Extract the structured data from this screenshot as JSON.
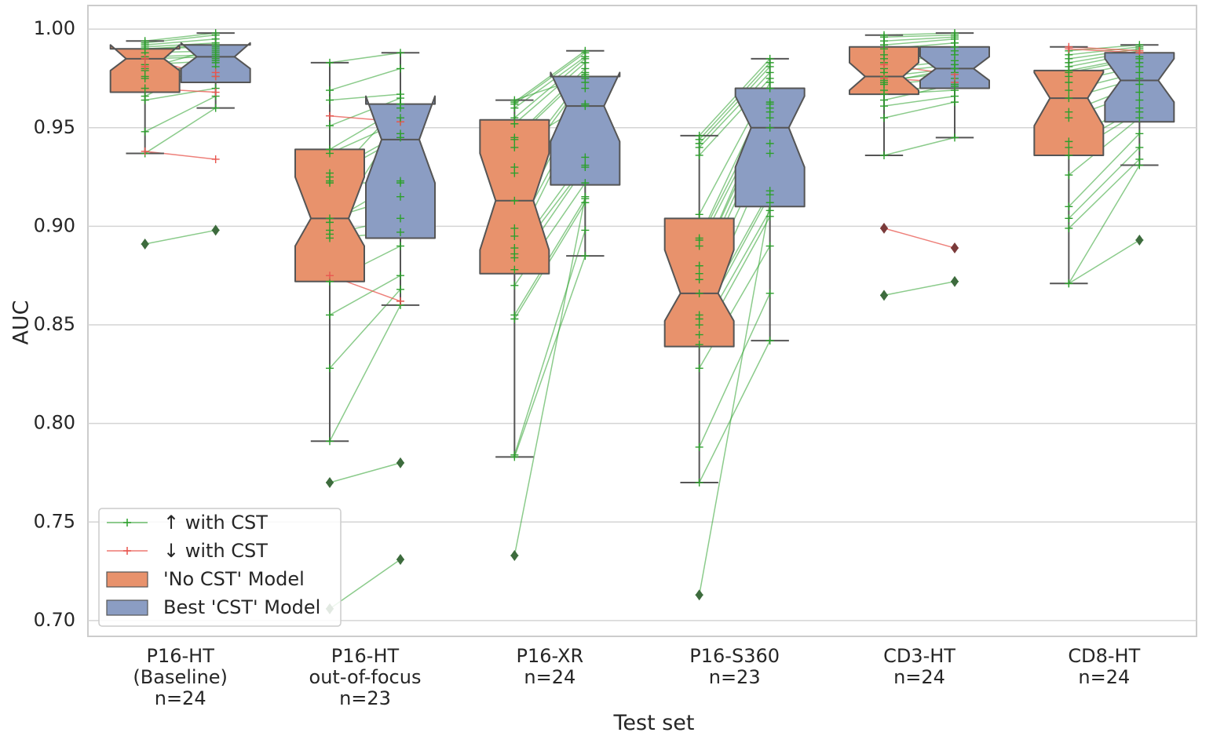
{
  "chart_data": {
    "type": "boxplot-paired",
    "title": "",
    "xlabel": "Test set",
    "ylabel": "AUC",
    "ylim": [
      0.692,
      1.012
    ],
    "yticks": [
      0.7,
      0.75,
      0.8,
      0.85,
      0.9,
      0.95,
      1.0
    ],
    "ytick_labels": [
      "0.70",
      "0.75",
      "0.80",
      "0.85",
      "0.90",
      "0.95",
      "1.00"
    ],
    "grid": true,
    "legend_location": "lower-left",
    "legend": [
      {
        "label": "↑ with CST",
        "kind": "line",
        "color": "#2ca02c"
      },
      {
        "label": "↓ with CST",
        "kind": "line",
        "color": "#e8554e"
      },
      {
        "label": "'No CST' Model",
        "kind": "patch",
        "color": "#e8926c"
      },
      {
        "label": "Best 'CST' Model",
        "kind": "patch",
        "color": "#8b9dc3"
      }
    ],
    "colors": {
      "no_cst": "#e8926c",
      "cst": "#8b9dc3",
      "edge": "#555555",
      "up": "#2ca02c",
      "down": "#e8554e",
      "outlier_green": "#3d6b3d",
      "outlier_red": "#7a3a3a",
      "grid": "#d4d4d4"
    },
    "categories": [
      {
        "lines": [
          "P16-HT",
          "(Baseline)",
          "n=24"
        ],
        "no_cst": {
          "whislo": 0.937,
          "q1": 0.968,
          "med": 0.985,
          "q3": 0.99,
          "whishi": 0.994,
          "notch_lo": 0.979,
          "notch_hi": 0.992,
          "outliers": [
            0.891
          ]
        },
        "cst": {
          "whislo": 0.96,
          "q1": 0.973,
          "med": 0.986,
          "q3": 0.992,
          "whishi": 0.998,
          "notch_lo": 0.98,
          "notch_hi": 0.993,
          "outliers": [
            0.898
          ]
        },
        "pairs": [
          [
            0.937,
            0.96
          ],
          [
            0.948,
            0.966
          ],
          [
            0.964,
            0.97
          ],
          [
            0.97,
            0.968
          ],
          [
            0.976,
            0.976
          ],
          [
            0.979,
            0.981
          ],
          [
            0.982,
            0.984
          ],
          [
            0.985,
            0.986
          ],
          [
            0.986,
            0.987
          ],
          [
            0.988,
            0.989
          ],
          [
            0.99,
            0.991
          ],
          [
            0.991,
            0.993
          ],
          [
            0.992,
            0.995
          ],
          [
            0.993,
            0.997
          ],
          [
            0.994,
            0.998
          ],
          [
            0.98,
            0.99
          ],
          [
            0.975,
            0.985
          ],
          [
            0.97,
            0.988
          ],
          [
            0.966,
            0.983
          ],
          [
            0.938,
            0.934
          ],
          [
            0.981,
            0.978
          ],
          [
            0.985,
            0.976
          ],
          [
            0.99,
            0.992
          ],
          [
            0.891,
            0.898
          ]
        ]
      },
      {
        "lines": [
          "P16-HT",
          "out-of-focus",
          "n=23"
        ],
        "no_cst": {
          "whislo": 0.791,
          "q1": 0.872,
          "med": 0.904,
          "q3": 0.939,
          "whishi": 0.983,
          "notch_lo": 0.89,
          "notch_hi": 0.925,
          "outliers": [
            0.77,
            0.706
          ]
        },
        "cst": {
          "whislo": 0.86,
          "q1": 0.894,
          "med": 0.944,
          "q3": 0.962,
          "whishi": 0.988,
          "notch_lo": 0.922,
          "notch_hi": 0.966,
          "outliers": [
            0.78,
            0.731
          ]
        },
        "pairs": [
          [
            0.791,
            0.86
          ],
          [
            0.828,
            0.868
          ],
          [
            0.855,
            0.875
          ],
          [
            0.872,
            0.89
          ],
          [
            0.894,
            0.897
          ],
          [
            0.896,
            0.904
          ],
          [
            0.904,
            0.915
          ],
          [
            0.922,
            0.922
          ],
          [
            0.925,
            0.945
          ],
          [
            0.927,
            0.947
          ],
          [
            0.939,
            0.96
          ],
          [
            0.951,
            0.965
          ],
          [
            0.964,
            0.967
          ],
          [
            0.969,
            0.98
          ],
          [
            0.983,
            0.988
          ],
          [
            0.902,
            0.923
          ],
          [
            0.937,
            0.953
          ],
          [
            0.956,
            0.953
          ],
          [
            0.875,
            0.862
          ],
          [
            0.898,
            0.955
          ],
          [
            0.923,
            0.962
          ],
          [
            0.77,
            0.78
          ],
          [
            0.706,
            0.731
          ]
        ]
      },
      {
        "lines": [
          "P16-XR",
          "n=24"
        ],
        "no_cst": {
          "whislo": 0.783,
          "q1": 0.876,
          "med": 0.913,
          "q3": 0.954,
          "whishi": 0.964,
          "notch_lo": 0.888,
          "notch_hi": 0.937,
          "outliers": [
            0.733
          ]
        },
        "cst": {
          "whislo": 0.885,
          "q1": 0.921,
          "med": 0.961,
          "q3": 0.976,
          "whishi": 0.989,
          "notch_lo": 0.943,
          "notch_hi": 0.978,
          "outliers": []
        },
        "pairs": [
          [
            0.783,
            0.885
          ],
          [
            0.784,
            0.898
          ],
          [
            0.853,
            0.912
          ],
          [
            0.855,
            0.914
          ],
          [
            0.87,
            0.922
          ],
          [
            0.878,
            0.93
          ],
          [
            0.884,
            0.931
          ],
          [
            0.886,
            0.935
          ],
          [
            0.889,
            0.961
          ],
          [
            0.895,
            0.962
          ],
          [
            0.899,
            0.97
          ],
          [
            0.913,
            0.973
          ],
          [
            0.927,
            0.975
          ],
          [
            0.93,
            0.977
          ],
          [
            0.944,
            0.978
          ],
          [
            0.945,
            0.98
          ],
          [
            0.952,
            0.983
          ],
          [
            0.955,
            0.985
          ],
          [
            0.96,
            0.986
          ],
          [
            0.962,
            0.988
          ],
          [
            0.963,
            0.989
          ],
          [
            0.964,
            0.976
          ],
          [
            0.94,
            0.962
          ],
          [
            0.733,
            0.915
          ]
        ]
      },
      {
        "lines": [
          "P16-S360",
          "n=23"
        ],
        "no_cst": {
          "whislo": 0.77,
          "q1": 0.839,
          "med": 0.866,
          "q3": 0.904,
          "whishi": 0.946,
          "notch_lo": 0.852,
          "notch_hi": 0.888,
          "outliers": [
            0.713
          ]
        },
        "cst": {
          "whislo": 0.842,
          "q1": 0.91,
          "med": 0.95,
          "q3": 0.97,
          "whishi": 0.985,
          "notch_lo": 0.93,
          "notch_hi": 0.966,
          "outliers": []
        },
        "pairs": [
          [
            0.77,
            0.842
          ],
          [
            0.788,
            0.866
          ],
          [
            0.828,
            0.89
          ],
          [
            0.84,
            0.905
          ],
          [
            0.845,
            0.908
          ],
          [
            0.85,
            0.916
          ],
          [
            0.853,
            0.918
          ],
          [
            0.855,
            0.937
          ],
          [
            0.866,
            0.942
          ],
          [
            0.873,
            0.95
          ],
          [
            0.876,
            0.955
          ],
          [
            0.88,
            0.958
          ],
          [
            0.89,
            0.96
          ],
          [
            0.893,
            0.963
          ],
          [
            0.894,
            0.97
          ],
          [
            0.906,
            0.973
          ],
          [
            0.936,
            0.975
          ],
          [
            0.94,
            0.978
          ],
          [
            0.942,
            0.981
          ],
          [
            0.944,
            0.983
          ],
          [
            0.946,
            0.985
          ],
          [
            0.88,
            0.962
          ],
          [
            0.713,
            0.912
          ]
        ]
      },
      {
        "lines": [
          "CD3-HT",
          "n=24"
        ],
        "no_cst": {
          "whislo": 0.936,
          "q1": 0.967,
          "med": 0.976,
          "q3": 0.991,
          "whishi": 0.997,
          "notch_lo": 0.969,
          "notch_hi": 0.983,
          "outliers": [
            0.899,
            0.865
          ]
        },
        "cst": {
          "whislo": 0.945,
          "q1": 0.97,
          "med": 0.98,
          "q3": 0.991,
          "whishi": 0.998,
          "notch_lo": 0.974,
          "notch_hi": 0.986,
          "outliers": [
            0.889,
            0.872
          ]
        },
        "pairs": [
          [
            0.936,
            0.945
          ],
          [
            0.955,
            0.963
          ],
          [
            0.961,
            0.966
          ],
          [
            0.967,
            0.969
          ],
          [
            0.969,
            0.971
          ],
          [
            0.972,
            0.975
          ],
          [
            0.974,
            0.978
          ],
          [
            0.976,
            0.98
          ],
          [
            0.978,
            0.982
          ],
          [
            0.98,
            0.984
          ],
          [
            0.983,
            0.987
          ],
          [
            0.985,
            0.989
          ],
          [
            0.987,
            0.991
          ],
          [
            0.99,
            0.993
          ],
          [
            0.992,
            0.995
          ],
          [
            0.994,
            0.996
          ],
          [
            0.996,
            0.997
          ],
          [
            0.997,
            0.998
          ],
          [
            0.975,
            0.973
          ],
          [
            0.982,
            0.977
          ],
          [
            0.973,
            0.98
          ],
          [
            0.964,
            0.972
          ],
          [
            0.899,
            0.889
          ],
          [
            0.865,
            0.872
          ]
        ]
      },
      {
        "lines": [
          "CD8-HT",
          "n=24"
        ],
        "no_cst": {
          "whislo": 0.871,
          "q1": 0.936,
          "med": 0.965,
          "q3": 0.979,
          "whishi": 0.991,
          "notch_lo": 0.951,
          "notch_hi": 0.978,
          "outliers": []
        },
        "cst": {
          "whislo": 0.931,
          "q1": 0.953,
          "med": 0.974,
          "q3": 0.988,
          "whishi": 0.992,
          "notch_lo": 0.963,
          "notch_hi": 0.985,
          "outliers": [
            0.893
          ]
        },
        "pairs": [
          [
            0.871,
            0.893
          ],
          [
            0.871,
            0.931
          ],
          [
            0.899,
            0.934
          ],
          [
            0.904,
            0.94
          ],
          [
            0.91,
            0.947
          ],
          [
            0.926,
            0.955
          ],
          [
            0.936,
            0.958
          ],
          [
            0.94,
            0.96
          ],
          [
            0.943,
            0.964
          ],
          [
            0.955,
            0.968
          ],
          [
            0.958,
            0.972
          ],
          [
            0.965,
            0.975
          ],
          [
            0.969,
            0.978
          ],
          [
            0.973,
            0.981
          ],
          [
            0.976,
            0.983
          ],
          [
            0.979,
            0.986
          ],
          [
            0.981,
            0.988
          ],
          [
            0.983,
            0.989
          ],
          [
            0.985,
            0.99
          ],
          [
            0.987,
            0.991
          ],
          [
            0.989,
            0.992
          ],
          [
            0.991,
            0.989
          ],
          [
            0.99,
            0.988
          ],
          [
            0.978,
            0.985
          ]
        ]
      }
    ]
  }
}
